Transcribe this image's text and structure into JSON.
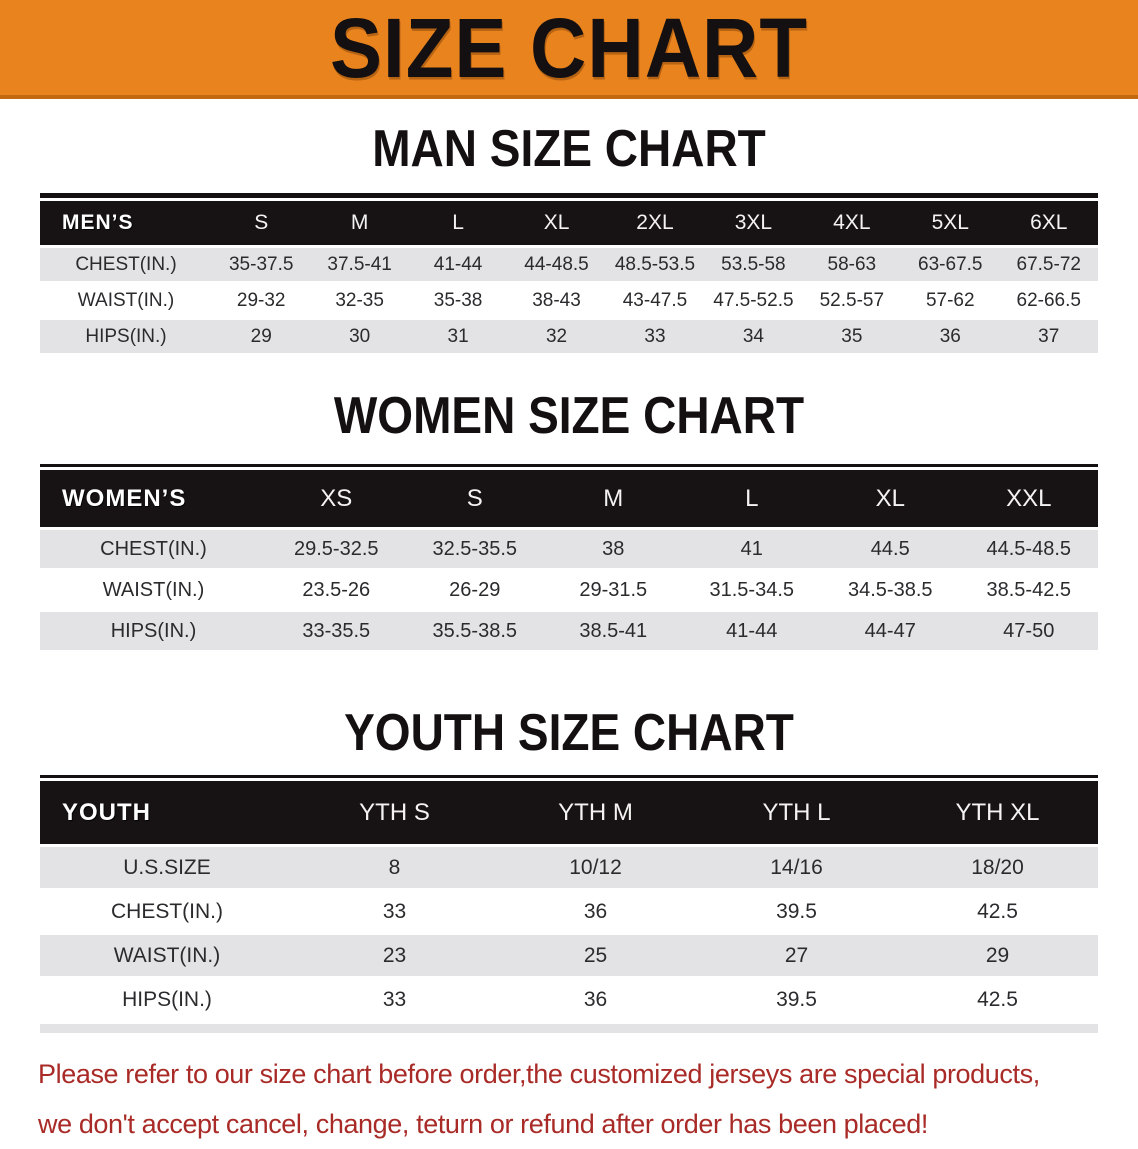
{
  "banner": {
    "title": "SIZE CHART"
  },
  "headings": {
    "men": "MAN SIZE CHART",
    "women": "WOMEN SIZE CHART",
    "youth": "YOUTH SIZE CHART"
  },
  "tables": {
    "men": {
      "label": "MEN’S",
      "columns": [
        "S",
        "M",
        "L",
        "XL",
        "2XL",
        "3XL",
        "4XL",
        "5XL",
        "6XL"
      ],
      "rows": [
        {
          "label": "CHEST(IN.)",
          "values": [
            "35-37.5",
            "37.5-41",
            "41-44",
            "44-48.5",
            "48.5-53.5",
            "53.5-58",
            "58-63",
            "63-67.5",
            "67.5-72"
          ]
        },
        {
          "label": "WAIST(IN.)",
          "values": [
            "29-32",
            "32-35",
            "35-38",
            "38-43",
            "43-47.5",
            "47.5-52.5",
            "52.5-57",
            "57-62",
            "62-66.5"
          ]
        },
        {
          "label": "HIPS(IN.)",
          "values": [
            "29",
            "30",
            "31",
            "32",
            "33",
            "34",
            "35",
            "36",
            "37"
          ]
        }
      ]
    },
    "women": {
      "label": "WOMEN’S",
      "columns": [
        "XS",
        "S",
        "M",
        "L",
        "XL",
        "XXL"
      ],
      "rows": [
        {
          "label": "CHEST(IN.)",
          "values": [
            "29.5-32.5",
            "32.5-35.5",
            "38",
            "41",
            "44.5",
            "44.5-48.5"
          ]
        },
        {
          "label": "WAIST(IN.)",
          "values": [
            "23.5-26",
            "26-29",
            "29-31.5",
            "31.5-34.5",
            "34.5-38.5",
            "38.5-42.5"
          ]
        },
        {
          "label": "HIPS(IN.)",
          "values": [
            "33-35.5",
            "35.5-38.5",
            "38.5-41",
            "41-44",
            "44-47",
            "47-50"
          ]
        }
      ]
    },
    "youth": {
      "label": "YOUTH",
      "columns": [
        "YTH S",
        "YTH M",
        "YTH L",
        "YTH XL"
      ],
      "rows": [
        {
          "label": "U.S.SIZE",
          "values": [
            "8",
            "10/12",
            "14/16",
            "18/20"
          ]
        },
        {
          "label": "CHEST(IN.)",
          "values": [
            "33",
            "36",
            "39.5",
            "42.5"
          ]
        },
        {
          "label": "WAIST(IN.)",
          "values": [
            "23",
            "25",
            "27",
            "29"
          ]
        },
        {
          "label": "HIPS(IN.)",
          "values": [
            "33",
            "36",
            "39.5",
            "42.5"
          ]
        }
      ]
    }
  },
  "note": {
    "line1": "Please refer to our size chart before order,the customized jerseys are special products,",
    "line2": "we don't accept cancel, change, teturn or refund after order has been placed!"
  },
  "colors": {
    "banner_orange": "#e8831e",
    "banner_edge": "#c2690f",
    "header_black": "#171314",
    "row_gray": "#e3e3e5",
    "row_text": "#2b2b2e",
    "note_red": "#a92b28"
  }
}
